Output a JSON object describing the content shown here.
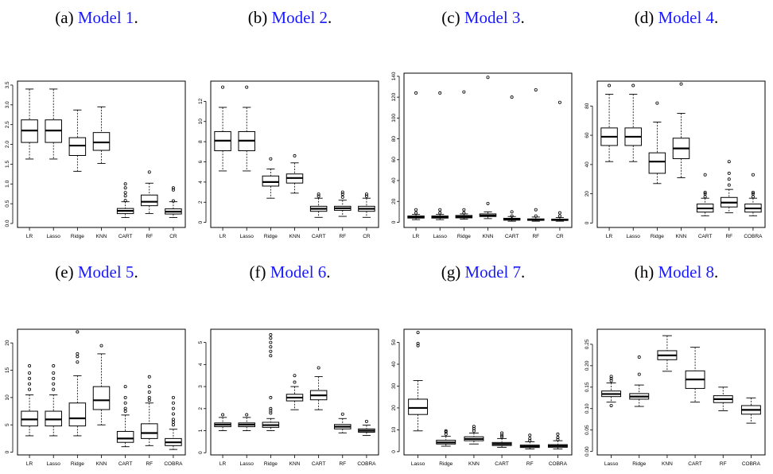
{
  "captions": [
    {
      "label": "(a)",
      "ref": "Model 1",
      "end": "."
    },
    {
      "label": "(b)",
      "ref": "Model 2",
      "end": "."
    },
    {
      "label": "(c)",
      "ref": "Model 3",
      "end": "."
    },
    {
      "label": "(d)",
      "ref": "Model 4",
      "end": "."
    },
    {
      "label": "(e)",
      "ref": "Model 5",
      "end": "."
    },
    {
      "label": "(f)",
      "ref": "Model 6",
      "end": "."
    },
    {
      "label": "(g)",
      "ref": "Model 7",
      "end": "."
    },
    {
      "label": "(h)",
      "ref": "Model 8",
      "end": "."
    }
  ],
  "colors": {
    "caption_ref": "#1a1aff",
    "box": "#000000",
    "background": "#ffffff"
  },
  "chart_data": [
    {
      "type": "boxplot",
      "title": "Model 1",
      "categories": [
        "LR",
        "Lasso",
        "Ridge",
        "KNN",
        "CART",
        "RF",
        "CR"
      ],
      "ylim": [
        -0.1,
        3.6
      ],
      "yticks": [
        0.0,
        0.5,
        1.0,
        1.5,
        2.0,
        2.5,
        3.0,
        3.5
      ],
      "ytick_labels": [
        "0.0",
        "0.5",
        "1.0",
        "1.5",
        "2.0",
        "2.5",
        "3.0",
        "3.5"
      ],
      "boxes": [
        {
          "lw": 1.63,
          "q1": 2.05,
          "med": 2.35,
          "q3": 2.62,
          "uw": 3.4,
          "out": []
        },
        {
          "lw": 1.63,
          "q1": 2.05,
          "med": 2.35,
          "q3": 2.62,
          "uw": 3.4,
          "out": []
        },
        {
          "lw": 1.32,
          "q1": 1.72,
          "med": 1.97,
          "q3": 2.17,
          "uw": 2.87,
          "out": []
        },
        {
          "lw": 1.52,
          "q1": 1.85,
          "med": 2.05,
          "q3": 2.3,
          "uw": 2.95,
          "out": []
        },
        {
          "lw": 0.15,
          "q1": 0.25,
          "med": 0.32,
          "q3": 0.38,
          "uw": 0.55,
          "out": [
            0.58,
            0.7,
            0.78,
            0.9,
            1.0
          ]
        },
        {
          "lw": 0.25,
          "q1": 0.45,
          "med": 0.55,
          "q3": 0.72,
          "uw": 1.02,
          "out": [
            1.3
          ]
        },
        {
          "lw": 0.15,
          "q1": 0.24,
          "med": 0.3,
          "q3": 0.37,
          "uw": 0.55,
          "out": [
            0.57,
            0.85,
            0.9
          ]
        }
      ]
    },
    {
      "type": "boxplot",
      "title": "Model 2",
      "categories": [
        "LR",
        "Lasso",
        "Ridge",
        "KNN",
        "CART",
        "RF",
        "CR"
      ],
      "ylim": [
        -0.5,
        14.0
      ],
      "yticks": [
        0,
        2,
        4,
        6,
        8,
        10,
        12
      ],
      "ytick_labels": [
        "0",
        "2",
        "4",
        "6",
        "8",
        "10",
        "12"
      ],
      "boxes": [
        {
          "lw": 5.1,
          "q1": 7.1,
          "med": 8.1,
          "q3": 9.0,
          "uw": 11.4,
          "out": [
            13.4
          ]
        },
        {
          "lw": 5.1,
          "q1": 7.1,
          "med": 8.1,
          "q3": 9.0,
          "uw": 11.4,
          "out": [
            13.4
          ]
        },
        {
          "lw": 2.4,
          "q1": 3.6,
          "med": 4.0,
          "q3": 4.6,
          "uw": 5.3,
          "out": [
            6.3
          ]
        },
        {
          "lw": 2.9,
          "q1": 3.9,
          "med": 4.4,
          "q3": 4.8,
          "uw": 5.9,
          "out": [
            6.6
          ]
        },
        {
          "lw": 0.5,
          "q1": 1.1,
          "med": 1.35,
          "q3": 1.6,
          "uw": 2.4,
          "out": [
            2.6,
            2.8
          ]
        },
        {
          "lw": 0.6,
          "q1": 1.2,
          "med": 1.4,
          "q3": 1.6,
          "uw": 2.2,
          "out": [
            2.5,
            2.8,
            3.0
          ]
        },
        {
          "lw": 0.5,
          "q1": 1.1,
          "med": 1.35,
          "q3": 1.6,
          "uw": 2.4,
          "out": [
            2.6,
            2.8
          ]
        }
      ]
    },
    {
      "type": "boxplot",
      "title": "Model 3",
      "categories": [
        "LR",
        "Lasso",
        "Ridge",
        "KNN",
        "CART",
        "RF",
        "CR"
      ],
      "ylim": [
        -5,
        143
      ],
      "yticks": [
        0,
        20,
        40,
        60,
        80,
        100,
        120,
        140
      ],
      "ytick_labels": [
        "0",
        "20",
        "40",
        "60",
        "80",
        "100",
        "120",
        "140"
      ],
      "boxes": [
        {
          "lw": 2.5,
          "q1": 4.0,
          "med": 5.0,
          "q3": 6.0,
          "uw": 7.5,
          "out": [
            9,
            12,
            124
          ]
        },
        {
          "lw": 2.5,
          "q1": 4.0,
          "med": 5.0,
          "q3": 6.0,
          "uw": 7.5,
          "out": [
            9,
            12,
            124
          ]
        },
        {
          "lw": 3.0,
          "q1": 4.2,
          "med": 5.2,
          "q3": 6.5,
          "uw": 8.0,
          "out": [
            9,
            12,
            125
          ]
        },
        {
          "lw": 3.5,
          "q1": 5.5,
          "med": 6.5,
          "q3": 8.0,
          "uw": 10.0,
          "out": [
            18,
            139
          ]
        },
        {
          "lw": 1.0,
          "q1": 2.0,
          "med": 2.8,
          "q3": 3.8,
          "uw": 5.5,
          "out": [
            6,
            10,
            120
          ]
        },
        {
          "lw": 1.0,
          "q1": 1.8,
          "med": 2.5,
          "q3": 3.2,
          "uw": 5.0,
          "out": [
            6,
            12,
            127
          ]
        },
        {
          "lw": 1.0,
          "q1": 1.7,
          "med": 2.3,
          "q3": 3.0,
          "uw": 4.5,
          "out": [
            6,
            9,
            115
          ]
        }
      ]
    },
    {
      "type": "boxplot",
      "title": "Model 4",
      "categories": [
        "LR",
        "Lasso",
        "Ridge",
        "KNN",
        "CART",
        "RF",
        "COBRA"
      ],
      "ylim": [
        -3,
        97
      ],
      "yticks": [
        0,
        20,
        40,
        60,
        80
      ],
      "ytick_labels": [
        "0",
        "20",
        "40",
        "60",
        "80"
      ],
      "boxes": [
        {
          "lw": 42,
          "q1": 53,
          "med": 59,
          "q3": 65,
          "uw": 88,
          "out": [
            94
          ]
        },
        {
          "lw": 42,
          "q1": 53,
          "med": 59,
          "q3": 65,
          "uw": 88,
          "out": [
            94
          ]
        },
        {
          "lw": 27,
          "q1": 34,
          "med": 42,
          "q3": 48,
          "uw": 69,
          "out": [
            82
          ]
        },
        {
          "lw": 31,
          "q1": 44,
          "med": 51,
          "q3": 58,
          "uw": 75,
          "out": [
            95
          ]
        },
        {
          "lw": 5,
          "q1": 7.5,
          "med": 10,
          "q3": 13,
          "uw": 17,
          "out": [
            18,
            20,
            21,
            33
          ]
        },
        {
          "lw": 7,
          "q1": 11,
          "med": 14,
          "q3": 17.5,
          "uw": 23,
          "out": [
            26,
            30,
            34,
            42
          ]
        },
        {
          "lw": 5,
          "q1": 7.5,
          "med": 10,
          "q3": 13,
          "uw": 17,
          "out": [
            18,
            20,
            21,
            33
          ]
        }
      ]
    },
    {
      "type": "boxplot",
      "title": "Model 5",
      "categories": [
        "LR",
        "Lasso",
        "Ridge",
        "KNN",
        "CART",
        "RF",
        "COBRA"
      ],
      "ylim": [
        -0.5,
        22.5
      ],
      "yticks": [
        0,
        5,
        10,
        15,
        20
      ],
      "ytick_labels": [
        "0",
        "5",
        "10",
        "15",
        "20"
      ],
      "boxes": [
        {
          "lw": 3.0,
          "q1": 4.8,
          "med": 6.0,
          "q3": 7.5,
          "uw": 10.5,
          "out": [
            11.5,
            12.5,
            13.5,
            14.5,
            15.8
          ]
        },
        {
          "lw": 3.0,
          "q1": 4.8,
          "med": 6.0,
          "q3": 7.5,
          "uw": 10.5,
          "out": [
            11.5,
            12.5,
            13.5,
            14.5,
            15.8
          ]
        },
        {
          "lw": 3.0,
          "q1": 4.8,
          "med": 6.2,
          "q3": 9.0,
          "uw": 14.0,
          "out": [
            16.5,
            17.5,
            18,
            22
          ]
        },
        {
          "lw": 5.0,
          "q1": 7.8,
          "med": 9.5,
          "q3": 12.0,
          "uw": 18.0,
          "out": [
            19.5
          ]
        },
        {
          "lw": 1.0,
          "q1": 1.8,
          "med": 2.5,
          "q3": 3.8,
          "uw": 6.8,
          "out": [
            7.5,
            8,
            9,
            10,
            12
          ]
        },
        {
          "lw": 1.2,
          "q1": 2.5,
          "med": 3.5,
          "q3": 5.2,
          "uw": 9.0,
          "out": [
            9.5,
            10,
            11,
            12,
            13.8
          ]
        },
        {
          "lw": 0.5,
          "q1": 1.2,
          "med": 1.8,
          "q3": 2.5,
          "uw": 4.2,
          "out": [
            5,
            5.5,
            6,
            7,
            8,
            9,
            10
          ]
        }
      ]
    },
    {
      "type": "boxplot",
      "title": "Model 6",
      "categories": [
        "LR",
        "Lasso",
        "Ridge",
        "KNN",
        "CART",
        "RF",
        "COBRA"
      ],
      "ylim": [
        -0.1,
        5.6
      ],
      "yticks": [
        0,
        1,
        2,
        3,
        4,
        5
      ],
      "ytick_labels": [
        "0",
        "1",
        "2",
        "3",
        "4",
        "5"
      ],
      "boxes": [
        {
          "lw": 1.0,
          "q1": 1.18,
          "med": 1.27,
          "q3": 1.35,
          "uw": 1.6,
          "out": [
            1.72
          ]
        },
        {
          "lw": 1.0,
          "q1": 1.18,
          "med": 1.27,
          "q3": 1.35,
          "uw": 1.6,
          "out": [
            1.72
          ]
        },
        {
          "lw": 1.0,
          "q1": 1.15,
          "med": 1.25,
          "q3": 1.38,
          "uw": 1.55,
          "out": [
            1.8,
            1.9,
            2.0,
            2.5,
            4.4,
            4.6,
            4.8,
            5.0,
            5.2,
            5.35
          ]
        },
        {
          "lw": 1.95,
          "q1": 2.35,
          "med": 2.5,
          "q3": 2.65,
          "uw": 3.0,
          "out": [
            3.2,
            3.5
          ]
        },
        {
          "lw": 1.95,
          "q1": 2.4,
          "med": 2.6,
          "q3": 2.82,
          "uw": 3.45,
          "out": [
            3.85
          ]
        },
        {
          "lw": 0.9,
          "q1": 1.08,
          "med": 1.18,
          "q3": 1.28,
          "uw": 1.55,
          "out": [
            1.75
          ]
        },
        {
          "lw": 0.78,
          "q1": 0.93,
          "med": 1.0,
          "q3": 1.08,
          "uw": 1.25,
          "out": [
            1.42
          ]
        }
      ]
    },
    {
      "type": "boxplot",
      "title": "Model 7",
      "categories": [
        "Lasso",
        "Ridge",
        "KNN",
        "CART",
        "RF",
        "COBRA"
      ],
      "ylim": [
        -1.5,
        56
      ],
      "yticks": [
        0,
        10,
        20,
        30,
        40,
        50
      ],
      "ytick_labels": [
        "0",
        "10",
        "20",
        "30",
        "40",
        "50"
      ],
      "boxes": [
        {
          "lw": 9.5,
          "q1": 17,
          "med": 20,
          "q3": 24,
          "uw": 32.5,
          "out": [
            48.5,
            49.5,
            54.5
          ]
        },
        {
          "lw": 2.5,
          "q1": 3.5,
          "med": 4.2,
          "q3": 5.2,
          "uw": 7.0,
          "out": [
            8,
            9,
            9.5
          ]
        },
        {
          "lw": 3.5,
          "q1": 5.0,
          "med": 5.8,
          "q3": 6.8,
          "uw": 8.5,
          "out": [
            9.5,
            10.5,
            11.5
          ]
        },
        {
          "lw": 2.0,
          "q1": 2.8,
          "med": 3.5,
          "q3": 4.2,
          "uw": 6.0,
          "out": [
            6.8,
            7.5,
            8.5
          ]
        },
        {
          "lw": 1.2,
          "q1": 1.9,
          "med": 2.4,
          "q3": 3.0,
          "uw": 4.5,
          "out": [
            5,
            6,
            7.5
          ]
        },
        {
          "lw": 1.2,
          "q1": 2.0,
          "med": 2.6,
          "q3": 3.2,
          "uw": 5.0,
          "out": [
            5.5,
            6.5,
            8
          ]
        }
      ]
    },
    {
      "type": "boxplot",
      "title": "Model 8",
      "categories": [
        "Lasso",
        "Ridge",
        "KNN",
        "CART",
        "RF",
        "COBRA"
      ],
      "ylim": [
        -0.008,
        0.285
      ],
      "yticks": [
        0.0,
        0.05,
        0.1,
        0.15,
        0.2,
        0.25
      ],
      "ytick_labels": [
        "0.00",
        "0.05",
        "0.10",
        "0.15",
        "0.20",
        "0.25"
      ],
      "boxes": [
        {
          "lw": 0.115,
          "q1": 0.128,
          "med": 0.134,
          "q3": 0.141,
          "uw": 0.16,
          "out": [
            0.107,
            0.165,
            0.17,
            0.175
          ]
        },
        {
          "lw": 0.105,
          "q1": 0.122,
          "med": 0.128,
          "q3": 0.135,
          "uw": 0.155,
          "out": [
            0.18,
            0.22
          ]
        },
        {
          "lw": 0.187,
          "q1": 0.214,
          "med": 0.224,
          "q3": 0.235,
          "uw": 0.27,
          "out": []
        },
        {
          "lw": 0.115,
          "q1": 0.147,
          "med": 0.168,
          "q3": 0.188,
          "uw": 0.243,
          "out": []
        },
        {
          "lw": 0.095,
          "q1": 0.114,
          "med": 0.122,
          "q3": 0.13,
          "uw": 0.15,
          "out": []
        },
        {
          "lw": 0.066,
          "q1": 0.087,
          "med": 0.097,
          "q3": 0.107,
          "uw": 0.125,
          "out": []
        }
      ]
    }
  ]
}
